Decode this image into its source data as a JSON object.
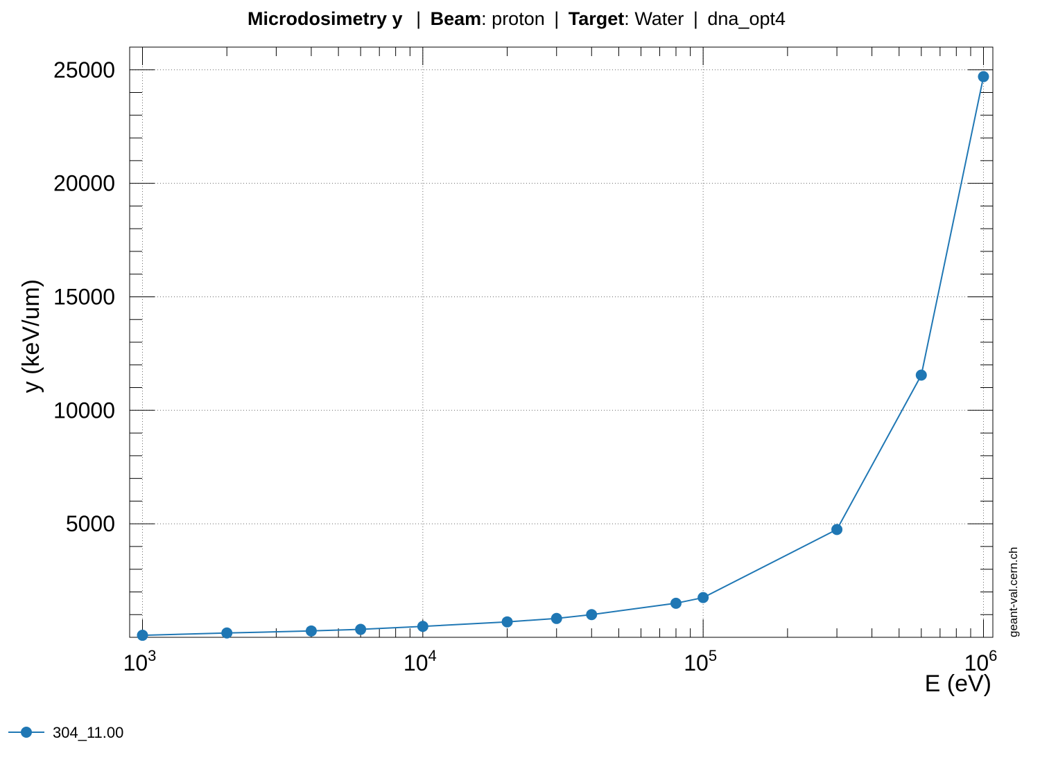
{
  "title": {
    "label": "Microdosimetry y",
    "beam_key": "Beam",
    "beam_value": "proton",
    "target_key": "Target",
    "target_value": "Water",
    "physics_list": "dna_opt4",
    "separator": "|"
  },
  "watermark": "geant-val.cern.ch",
  "chart_data": {
    "type": "line",
    "title": "Microdosimetry y | Beam: proton | Target: Water | dna_opt4",
    "xlabel": "E (eV)",
    "ylabel": "y (keV/um)",
    "xscale": "log",
    "xlim": [
      900,
      1080000
    ],
    "ylim": [
      0,
      26000
    ],
    "x_ticks": [
      1000,
      10000,
      100000,
      1000000
    ],
    "x_tick_labels": [
      {
        "base": "10",
        "exp": "3"
      },
      {
        "base": "10",
        "exp": "4"
      },
      {
        "base": "10",
        "exp": "5"
      },
      {
        "base": "10",
        "exp": "6"
      }
    ],
    "y_ticks": [
      5000,
      10000,
      15000,
      20000,
      25000
    ],
    "y_tick_labels": [
      "5000",
      "10000",
      "15000",
      "20000",
      "25000"
    ],
    "grid": true,
    "legend_position": "bottom-left",
    "series_color": "#1f77b4",
    "series": [
      {
        "name": "304_11.00",
        "x": [
          1000,
          2000,
          4000,
          6000,
          10000,
          20000,
          30000,
          40000,
          80000,
          100000,
          300000,
          600000,
          1000000
        ],
        "y": [
          90,
          190,
          280,
          350,
          480,
          680,
          830,
          1000,
          1500,
          1750,
          4750,
          11550,
          24700
        ]
      }
    ]
  }
}
